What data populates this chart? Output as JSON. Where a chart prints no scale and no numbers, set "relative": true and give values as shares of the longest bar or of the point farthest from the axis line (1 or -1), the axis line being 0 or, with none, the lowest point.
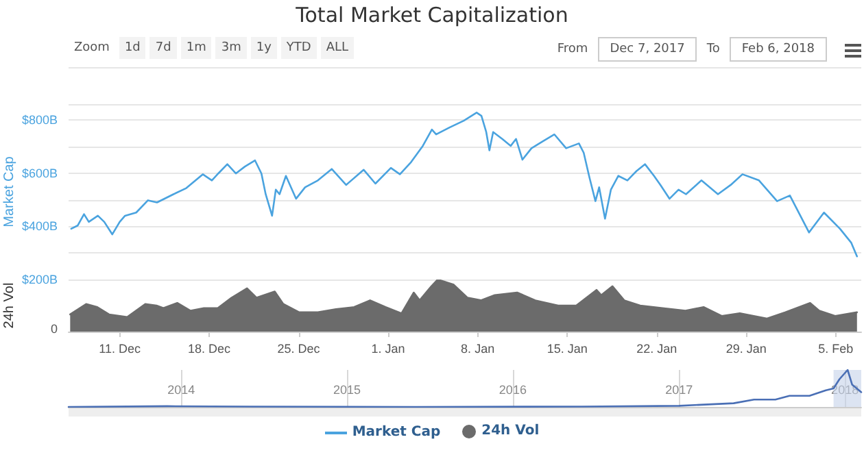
{
  "chart_data": [
    {
      "type": "line",
      "title": "Total Market Capitalization",
      "ylabel": "Market Cap",
      "legend": "bottom",
      "grid": "y",
      "tick_labels": "y",
      "annotations": [
        "Zoom",
        "1d",
        "7d",
        "1m",
        "3m",
        "1y",
        "YTD",
        "ALL",
        "From",
        "Dec 7, 2017",
        "To",
        "Feb 6, 2018"
      ],
      "xlim": [
        "2017-12-07",
        "2018-02-07"
      ],
      "ylim": [
        200,
        860
      ],
      "yticks": [
        {
          "value": 200,
          "label": "$200B"
        },
        {
          "value": 400,
          "label": "$400B"
        },
        {
          "value": 600,
          "label": "$600B"
        },
        {
          "value": 800,
          "label": "$800B"
        }
      ],
      "series": [
        {
          "name": "Market Cap",
          "color": "#4aa3df",
          "x": [
            "2017-12-07T05:00",
            "2017-12-07T17:00",
            "2017-12-08T05:00",
            "2017-12-08T14:00",
            "2017-12-09T07:00",
            "2017-12-09T19:00",
            "2017-12-10T10:00",
            "2017-12-11T00:00",
            "2017-12-11T10:00",
            "2017-12-12T07:00",
            "2017-12-13T05:00",
            "2017-12-13T22:00",
            "2017-12-15T05:00",
            "2017-12-16T05:00",
            "2017-12-17T12:00",
            "2017-12-18T05:00",
            "2017-12-18T17:00",
            "2017-12-19T10:00",
            "2017-12-20T02:00",
            "2017-12-20T19:00",
            "2017-12-21T14:00",
            "2017-12-22T02:00",
            "2017-12-22T10:00",
            "2017-12-22T22:00",
            "2017-12-23T05:00",
            "2017-12-23T12:00",
            "2017-12-24T00:00",
            "2017-12-24T19:00",
            "2017-12-25T12:00",
            "2017-12-26T12:00",
            "2017-12-27T14:00",
            "2017-12-28T17:00",
            "2017-12-30T02:00",
            "2017-12-31T00:00",
            "2018-01-01T05:00",
            "2018-01-01T22:00",
            "2018-01-02T19:00",
            "2018-01-03T17:00",
            "2018-01-04T10:00",
            "2018-01-04T18:00",
            "2018-01-05T19:00",
            "2018-01-06T22:00",
            "2018-01-07T22:00",
            "2018-01-08T07:00",
            "2018-01-08T16:00",
            "2018-01-08T22:00",
            "2018-01-09T05:00",
            "2018-01-09T22:00",
            "2018-01-10T14:00",
            "2018-01-11T00:00",
            "2018-01-11T12:00",
            "2018-01-12T05:00",
            "2018-01-13T02:00",
            "2018-01-14T00:00",
            "2018-01-14T22:00",
            "2018-01-15T22:00",
            "2018-01-16T07:00",
            "2018-01-16T18:00",
            "2018-01-17T05:00",
            "2018-01-17T12:00",
            "2018-01-17T23:00",
            "2018-01-18T10:00",
            "2018-01-19T00:00",
            "2018-01-19T17:00",
            "2018-01-20T10:00",
            "2018-01-21T02:00",
            "2018-01-21T19:00",
            "2018-01-22T07:00",
            "2018-01-23T00:00",
            "2018-01-23T17:00",
            "2018-01-24T07:00",
            "2018-01-25T12:00",
            "2018-01-26T19:00",
            "2018-01-27T19:00",
            "2018-01-28T17:00",
            "2018-01-30T00:00",
            "2018-01-31T10:00",
            "2018-02-01T10:00",
            "2018-02-02T22:00",
            "2018-02-04T02:00",
            "2018-02-05T08:00",
            "2018-02-06T05:00",
            "2018-02-06T16:00"
          ],
          "values": [
            391,
            403,
            446,
            417,
            440,
            417,
            370,
            417,
            440,
            452,
            498,
            490,
            521,
            544,
            596,
            573,
            599,
            634,
            599,
            625,
            648,
            599,
            521,
            440,
            538,
            521,
            590,
            504,
            547,
            573,
            616,
            556,
            613,
            561,
            620,
            596,
            642,
            703,
            764,
            746,
            772,
            798,
            828,
            816,
            755,
            686,
            755,
            729,
            703,
            729,
            651,
            694,
            720,
            746,
            694,
            712,
            677,
            582,
            495,
            547,
            429,
            538,
            590,
            573,
            608,
            634,
            590,
            556,
            504,
            538,
            521,
            573,
            521,
            556,
            596,
            573,
            495,
            516,
            377,
            452,
            391,
            339,
            287
          ]
        }
      ]
    },
    {
      "type": "area",
      "ylabel": "24h Vol",
      "legend": "bottom",
      "relative": true,
      "annotations": [
        "0"
      ],
      "xlim": [
        "2017-12-07",
        "2018-02-07"
      ],
      "xticks": [
        {
          "value": "2017-12-11",
          "label": "11. Dec"
        },
        {
          "value": "2017-12-18",
          "label": "18. Dec"
        },
        {
          "value": "2017-12-25",
          "label": "25. Dec"
        },
        {
          "value": "2018-01-01",
          "label": "1. Jan"
        },
        {
          "value": "2018-01-08",
          "label": "8. Jan"
        },
        {
          "value": "2018-01-15",
          "label": "15. Jan"
        },
        {
          "value": "2018-01-22",
          "label": "22. Jan"
        },
        {
          "value": "2018-01-29",
          "label": "29. Jan"
        },
        {
          "value": "2018-02-05",
          "label": "5. Feb"
        }
      ],
      "series": [
        {
          "name": "24h Vol",
          "color": "#6b6b6b",
          "x": [
            "2017-12-07T03:00",
            "2017-12-08T09:00",
            "2017-12-09T06:00",
            "2017-12-10T04:00",
            "2017-12-11T14:00",
            "2017-12-13T00:00",
            "2017-12-13T21:00",
            "2017-12-14T10:00",
            "2017-12-15T12:00",
            "2017-12-16T13:00",
            "2017-12-17T14:00",
            "2017-12-18T16:00",
            "2017-12-19T18:00",
            "2017-12-20T23:00",
            "2017-12-21T17:00",
            "2017-12-23T03:00",
            "2017-12-23T19:00",
            "2017-12-25T01:00",
            "2017-12-26T12:00",
            "2017-12-27T22:00",
            "2017-12-29T08:00",
            "2017-12-30T14:00",
            "2017-12-31T19:00",
            "2018-01-02T01:00",
            "2018-01-03T00:00",
            "2018-01-03T11:00",
            "2018-01-04T09:00",
            "2018-01-04T21:00",
            "2018-01-06T03:00",
            "2018-01-07T05:00",
            "2018-01-08T06:00",
            "2018-01-09T08:00",
            "2018-01-11T02:00",
            "2018-01-12T12:00",
            "2018-01-14T07:00",
            "2018-01-15T17:00",
            "2018-01-17T07:00",
            "2018-01-17T16:00",
            "2018-01-18T13:00",
            "2018-01-19T11:00",
            "2018-01-20T17:00",
            "2018-01-22T11:00",
            "2018-01-24T06:00",
            "2018-01-25T16:00",
            "2018-01-27T02:00",
            "2018-01-28T12:00",
            "2018-01-30T15:00",
            "2018-02-01T01:00",
            "2018-02-03T00:00",
            "2018-02-03T17:00",
            "2018-02-04T23:00",
            "2018-02-06T16:00"
          ],
          "values": [
            0.33,
            0.53,
            0.47,
            0.33,
            0.28,
            0.53,
            0.5,
            0.45,
            0.55,
            0.4,
            0.45,
            0.45,
            0.65,
            0.83,
            0.65,
            0.77,
            0.53,
            0.37,
            0.37,
            0.43,
            0.47,
            0.6,
            0.47,
            0.35,
            0.75,
            0.6,
            0.87,
            1,
            0.9,
            0.65,
            0.6,
            0.7,
            0.75,
            0.6,
            0.5,
            0.5,
            0.8,
            0.7,
            0.87,
            0.6,
            0.5,
            0.45,
            0.4,
            0.47,
            0.3,
            0.35,
            0.25,
            0.37,
            0.55,
            0.4,
            0.3,
            0.37
          ]
        }
      ]
    },
    {
      "type": "line",
      "relative": true,
      "grid": "x",
      "tick_labels": "x",
      "xlim": [
        "2013-04-28",
        "2018-02-06"
      ],
      "xticks": [
        {
          "value": "2014",
          "label": "2014"
        },
        {
          "value": "2015",
          "label": "2015"
        },
        {
          "value": "2016",
          "label": "2016"
        },
        {
          "value": "2017",
          "label": "2017"
        },
        {
          "value": "2018",
          "label": "2018"
        }
      ],
      "bands": [
        {
          "axis": "x",
          "from": "2017-12-07",
          "to": "2018-02-06",
          "color": "#c5d2ea"
        }
      ],
      "series": [
        {
          "color": "#4a6fb5",
          "x": [
            "2013-04-28",
            "2013-12-01",
            "2014-06-01",
            "2015-06-01",
            "2016-06-01",
            "2017-01-01",
            "2017-05-01",
            "2017-06-15",
            "2017-08-01",
            "2017-09-01",
            "2017-10-15",
            "2017-11-20",
            "2017-12-07",
            "2017-12-20",
            "2018-01-07",
            "2018-01-17",
            "2018-02-06"
          ],
          "values": [
            0,
            0.02,
            0.01,
            0,
            0.01,
            0.03,
            0.1,
            0.2,
            0.2,
            0.3,
            0.3,
            0.45,
            0.5,
            0.75,
            1,
            0.6,
            0.4
          ]
        }
      ]
    }
  ]
}
